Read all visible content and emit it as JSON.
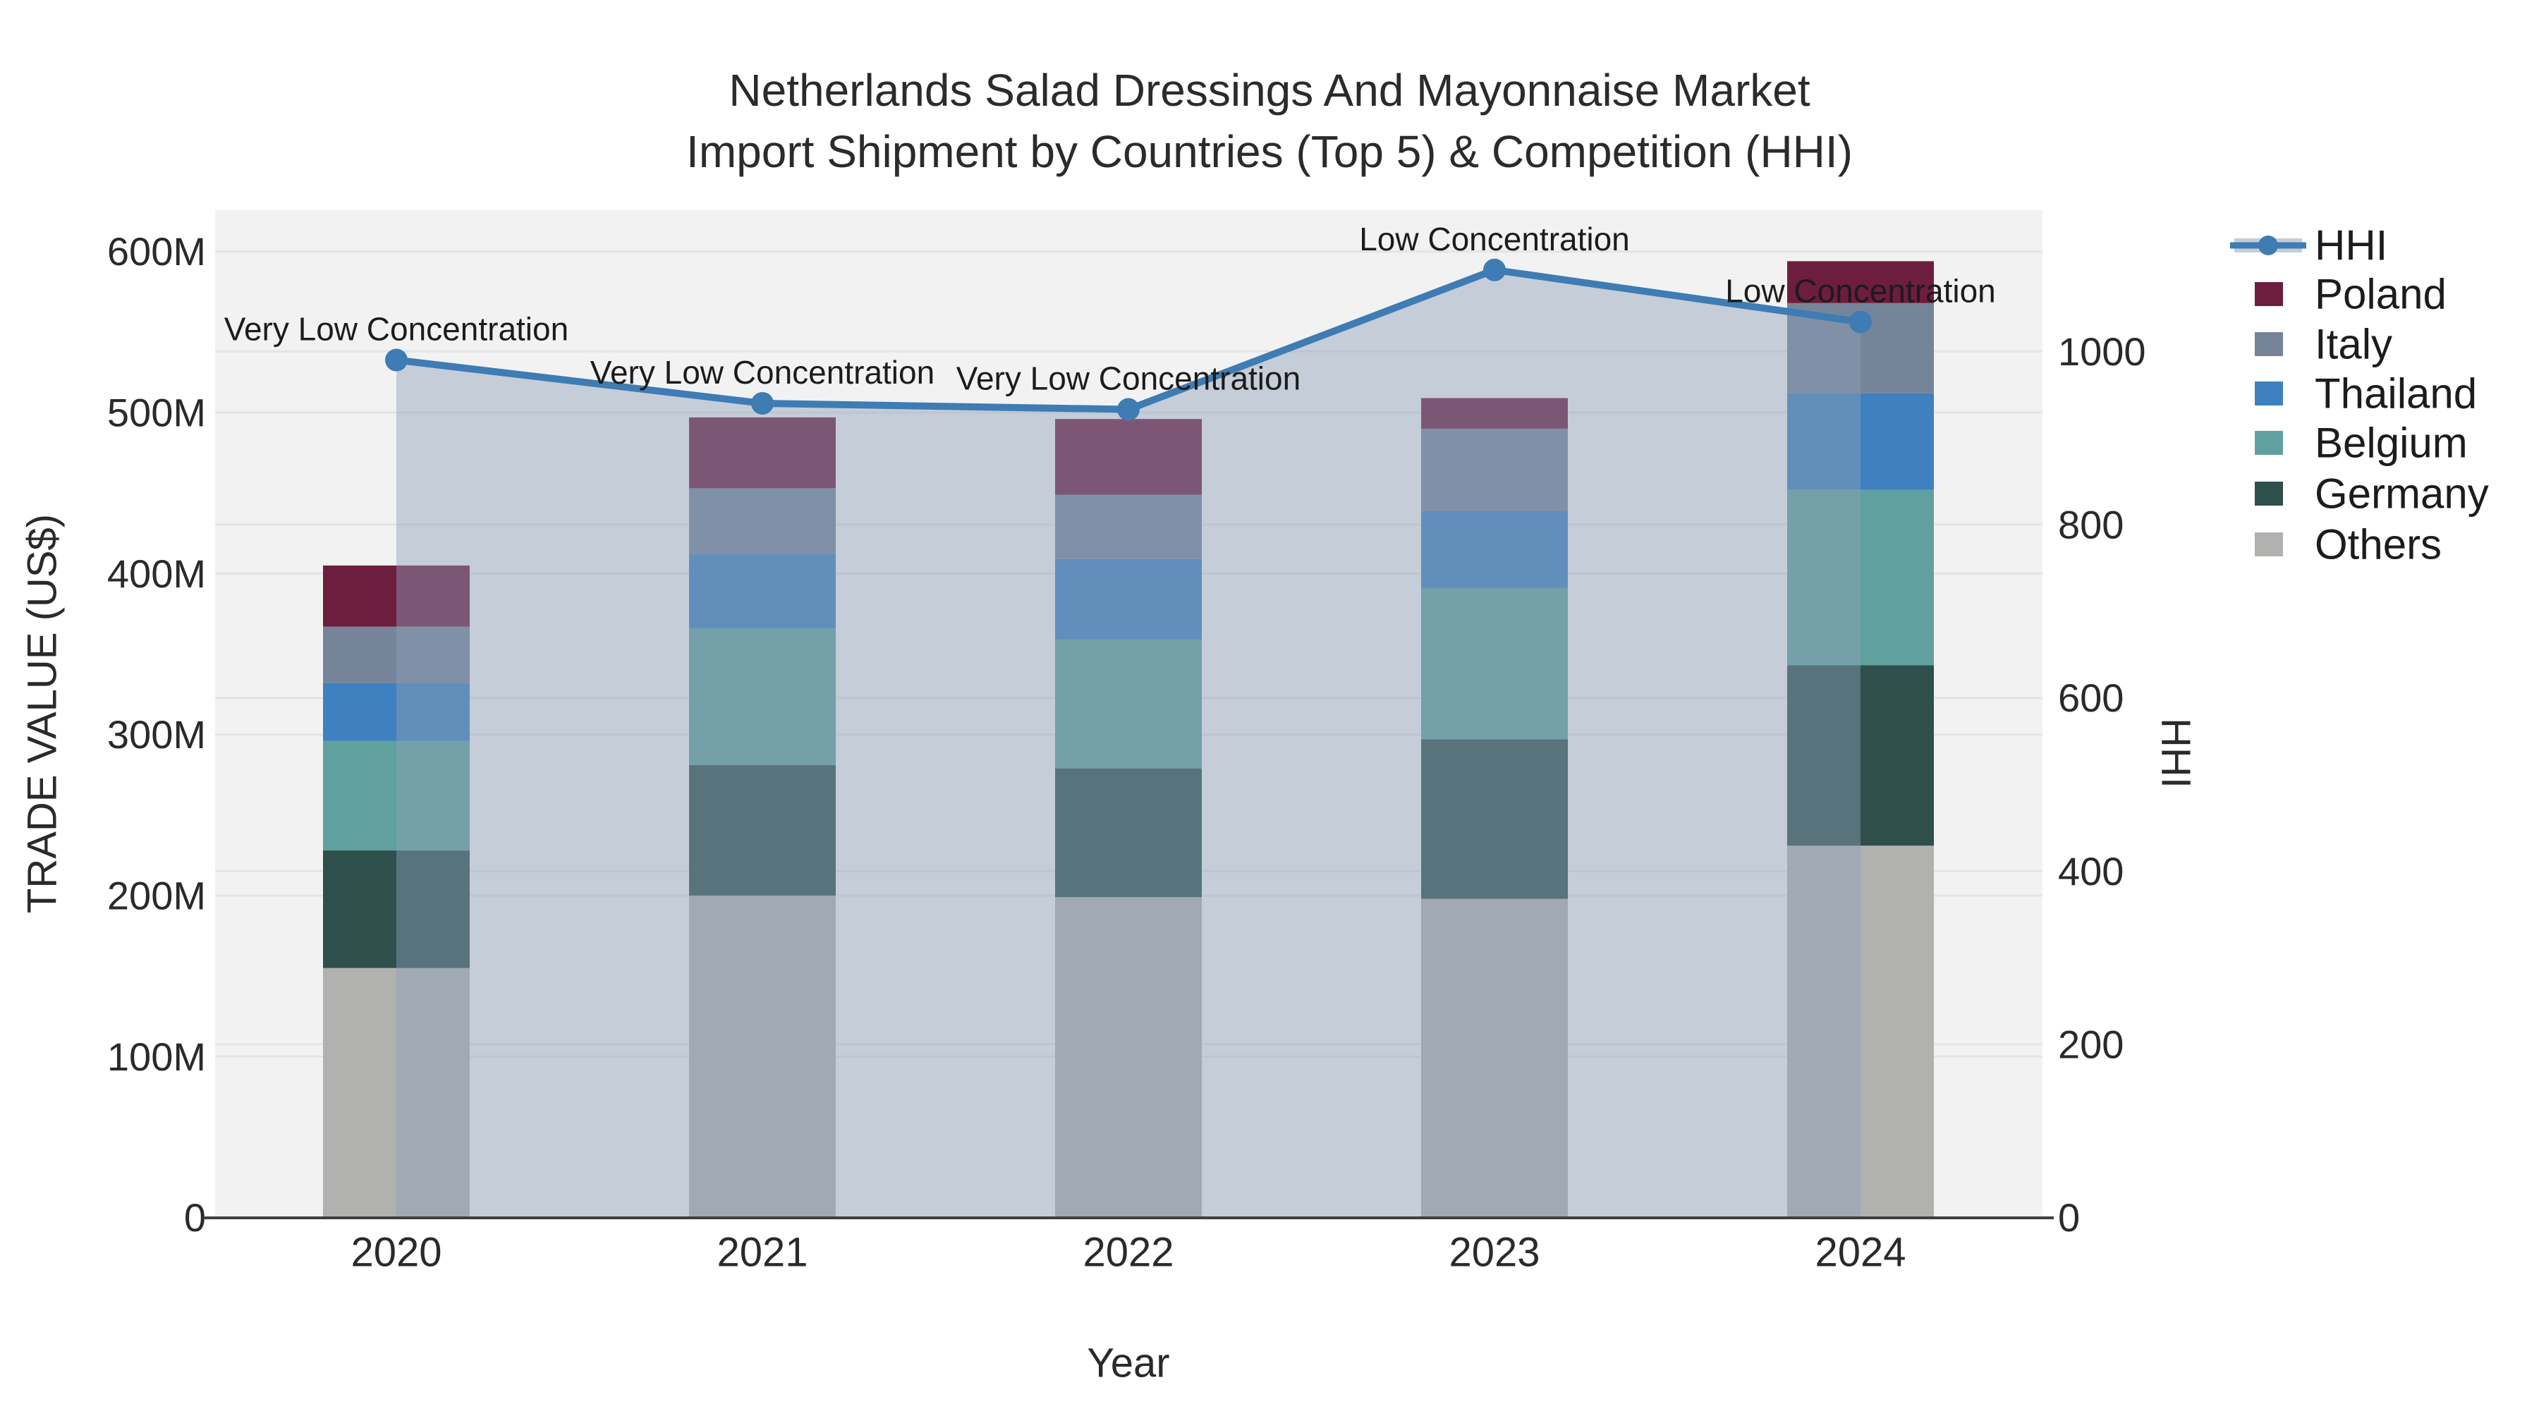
{
  "title": {
    "line1": "Netherlands Salad Dressings And Mayonnaise Market",
    "line2": "Import Shipment by Countries (Top 5) & Competition (HHI)"
  },
  "chart_data": {
    "type": "combo",
    "subtype": "stacked-bar-with-line",
    "categories": [
      "2020",
      "2021",
      "2022",
      "2023",
      "2024"
    ],
    "bar_value_unit": "US$ millions",
    "series": [
      {
        "name": "Poland",
        "type": "bar",
        "color": "#6d1d3e",
        "values": [
          38,
          44,
          47,
          19,
          26
        ]
      },
      {
        "name": "Italy",
        "type": "bar",
        "color": "#76849a",
        "values": [
          35,
          41,
          40,
          51,
          56
        ]
      },
      {
        "name": "Thailand",
        "type": "bar",
        "color": "#3f80c0",
        "values": [
          36,
          46,
          50,
          48,
          60
        ]
      },
      {
        "name": "Belgium",
        "type": "bar",
        "color": "#60a19f",
        "values": [
          68,
          85,
          80,
          94,
          109
        ]
      },
      {
        "name": "Germany",
        "type": "bar",
        "color": "#2e4f4b",
        "values": [
          73,
          81,
          80,
          99,
          112
        ]
      },
      {
        "name": "Others",
        "type": "bar",
        "color": "#b1b1af",
        "values": [
          155,
          200,
          199,
          198,
          231
        ]
      }
    ],
    "stack_totals": [
      405,
      497,
      496,
      509,
      594
    ],
    "line_series": {
      "name": "HHI",
      "color": "#3e7cb3",
      "fill_color": "rgba(141,160,184,0.45)",
      "values": [
        990,
        940,
        933,
        1094,
        1034
      ]
    },
    "annotations": [
      {
        "category": "2020",
        "text": "Very Low Concentration"
      },
      {
        "category": "2021",
        "text": "Very Low Concentration"
      },
      {
        "category": "2022",
        "text": "Very Low Concentration"
      },
      {
        "category": "2023",
        "text": "Low Concentration"
      },
      {
        "category": "2024",
        "text": "Low Concentration"
      }
    ],
    "xlabel": "Year",
    "ylabel_left": "TRADE VALUE (US$)",
    "ylabel_right": "HHI",
    "y_left_ticks": [
      {
        "label": "0",
        "value": 0
      },
      {
        "label": "100M",
        "value": 100
      },
      {
        "label": "200M",
        "value": 200
      },
      {
        "label": "300M",
        "value": 300
      },
      {
        "label": "400M",
        "value": 400
      },
      {
        "label": "500M",
        "value": 500
      },
      {
        "label": "600M",
        "value": 600
      }
    ],
    "y_right_ticks": [
      {
        "label": "0",
        "value": 0
      },
      {
        "label": "200",
        "value": 200
      },
      {
        "label": "400",
        "value": 400
      },
      {
        "label": "600",
        "value": 600
      },
      {
        "label": "800",
        "value": 800
      },
      {
        "label": "1000",
        "value": 1000
      }
    ],
    "ylim_left": [
      0,
      625
    ],
    "ylim_right": [
      0,
      1163
    ],
    "grid": true,
    "legend_position": "right",
    "legend_items": [
      "HHI",
      "Poland",
      "Italy",
      "Thailand",
      "Belgium",
      "Germany",
      "Others"
    ],
    "colors": {
      "plot_background": "#f2f2f3",
      "grid_line": "#e3e4e9",
      "axis_line": "#3f3f3f",
      "text": "#2a2a2a"
    }
  }
}
